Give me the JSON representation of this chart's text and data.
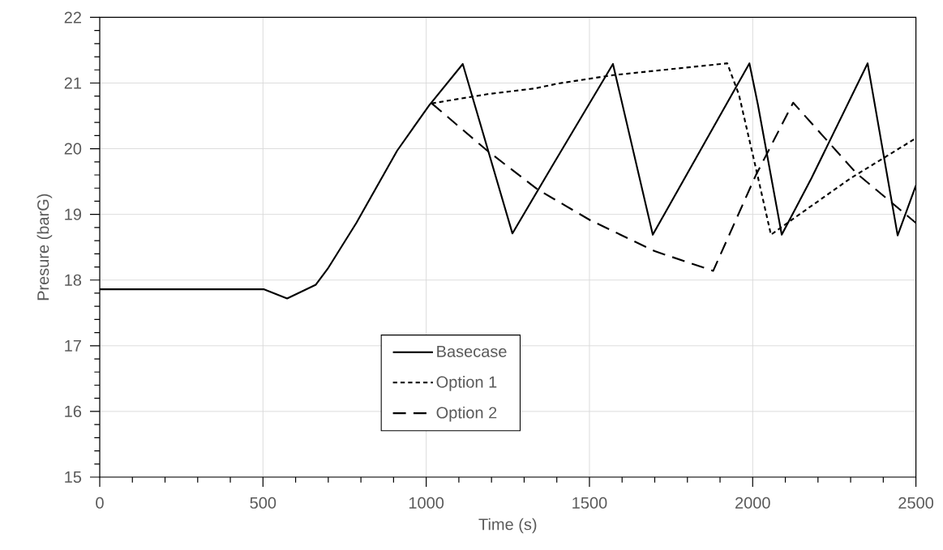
{
  "chart_data": {
    "type": "line",
    "xlabel": "Time (s)",
    "ylabel": "Presure (barG)",
    "xlim": [
      0,
      2500
    ],
    "xticks": [
      0,
      500,
      1000,
      1500,
      2000,
      2500
    ],
    "ylim": [
      15,
      22
    ],
    "yticks": [
      15,
      16,
      17,
      18,
      19,
      20,
      21,
      22
    ],
    "grid": true,
    "legend": "bottom",
    "marker": "none",
    "series": [
      {
        "name": "Basecase",
        "color": "#000000",
        "line_style": "solid",
        "x": [
          0,
          502,
          574,
          662,
          698,
          786,
          911,
          1009,
          1112,
          1264,
          1384,
          1572,
          1694,
          1990,
          2016,
          2089,
          2180,
          2352,
          2444,
          2500
        ],
        "values": [
          17.86,
          17.86,
          17.72,
          17.93,
          18.17,
          18.87,
          19.97,
          20.66,
          21.29,
          18.71,
          19.72,
          21.29,
          18.69,
          21.3,
          20.67,
          18.69,
          19.55,
          21.3,
          18.68,
          19.44
        ]
      },
      {
        "name": "Option 1",
        "color": "#000000",
        "line_style": "dotted",
        "x": [
          1017,
          1187,
          1336,
          1401,
          1572,
          1922,
          1958,
          2009,
          2056,
          2129,
          2300,
          2500
        ],
        "values": [
          20.69,
          20.83,
          20.92,
          20.99,
          21.12,
          21.3,
          20.82,
          19.72,
          18.69,
          18.95,
          19.55,
          20.16
        ]
      },
      {
        "name": "Option 2",
        "color": "#000000",
        "line_style": "dashed",
        "x": [
          1017,
          1187,
          1341,
          1503,
          1700,
          1879,
          2009,
          2124,
          2317,
          2471,
          2500
        ],
        "values": [
          20.69,
          19.97,
          19.38,
          18.91,
          18.44,
          18.14,
          19.59,
          20.7,
          19.63,
          18.99,
          18.87
        ]
      }
    ]
  }
}
